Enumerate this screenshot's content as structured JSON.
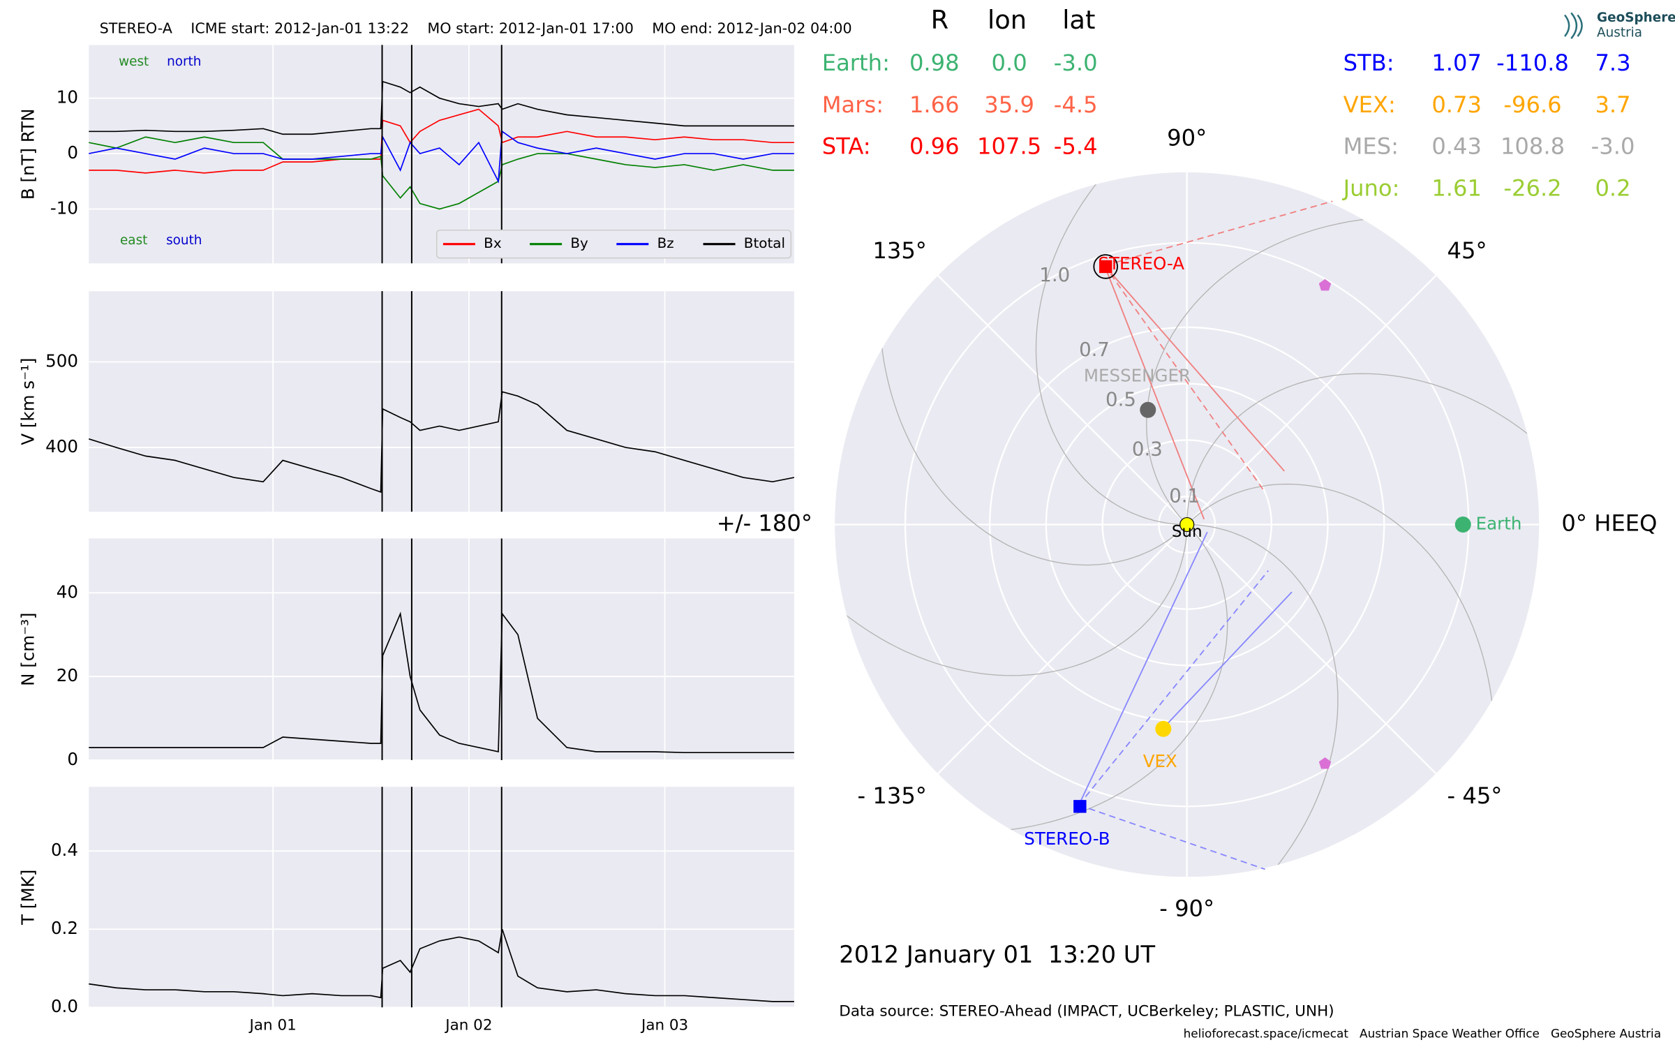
{
  "chart_data": [
    {
      "type": "line",
      "title": "STEREO-A    ICME start: 2012-Jan-01 13:22    MO start: 2012-Jan-01 17:00    MO end: 2012-Jan-02 04:00",
      "y_label": "B [nT] RTN",
      "x": [
        0.06,
        0.2,
        0.35,
        0.5,
        0.65,
        0.8,
        0.95,
        1.05,
        1.2,
        1.35,
        1.5,
        1.55,
        1.56,
        1.65,
        1.7,
        1.75,
        1.85,
        1.95,
        2.05,
        2.15,
        2.17,
        2.25,
        2.35,
        2.5,
        2.65,
        2.8,
        2.95,
        3.1,
        3.25,
        3.4,
        3.55,
        3.66
      ],
      "xlim": [
        0.06,
        3.66
      ],
      "ylim": [
        -19.8,
        19.6
      ],
      "yticks": [
        -10,
        0,
        10
      ],
      "event_lines": [
        1.557,
        1.708,
        2.167
      ],
      "annotations": [
        {
          "text": "west",
          "color": "#228b22"
        },
        {
          "text": "north",
          "color": "#0000cc"
        },
        {
          "text": "east",
          "color": "#228b22"
        },
        {
          "text": "south",
          "color": "#0000cc"
        }
      ],
      "series": [
        {
          "name": "Bx",
          "color": "#ff0000",
          "values": [
            -3,
            -3,
            -3.5,
            -3,
            -3.5,
            -3,
            -3,
            -1.5,
            -1.5,
            -1,
            -1,
            -1,
            6,
            5,
            2,
            4,
            6,
            7,
            8,
            5,
            2,
            3,
            3,
            4,
            3,
            3,
            2.5,
            3,
            2.5,
            2.5,
            2,
            2
          ]
        },
        {
          "name": "By",
          "color": "#008000",
          "values": [
            2,
            1,
            3,
            2,
            3,
            2,
            2,
            -1,
            -1,
            -1,
            -1,
            -0.5,
            -4,
            -8,
            -6,
            -9,
            -10,
            -9,
            -7,
            -5,
            -2,
            -1,
            0,
            0,
            -1,
            -2,
            -2.5,
            -2,
            -3,
            -2,
            -3,
            -3
          ]
        },
        {
          "name": "Bz",
          "color": "#0000ff",
          "values": [
            0,
            1,
            0,
            -1,
            1,
            0,
            0,
            -1,
            -1,
            -0.5,
            0,
            0,
            3,
            -3,
            2,
            0,
            1,
            -2,
            2,
            -5,
            4,
            2,
            1,
            0,
            1,
            0,
            -1,
            0,
            0,
            -1,
            0,
            0
          ]
        },
        {
          "name": "Btotal",
          "color": "#000000",
          "values": [
            4,
            4,
            4.2,
            4,
            4,
            4.2,
            4.5,
            3.5,
            3.5,
            4,
            4.5,
            4.5,
            13,
            12,
            11,
            12,
            10,
            9,
            8.5,
            9,
            8,
            9,
            8,
            7,
            6.5,
            6,
            5.5,
            5,
            5,
            5,
            5,
            5
          ]
        }
      ]
    },
    {
      "type": "line",
      "y_label": "V [km s⁻¹]",
      "x": [
        0.06,
        0.2,
        0.35,
        0.5,
        0.65,
        0.8,
        0.95,
        1.05,
        1.2,
        1.35,
        1.5,
        1.55,
        1.56,
        1.65,
        1.7,
        1.75,
        1.85,
        1.95,
        2.05,
        2.15,
        2.17,
        2.25,
        2.35,
        2.5,
        2.65,
        2.8,
        2.95,
        3.1,
        3.25,
        3.4,
        3.55,
        3.66
      ],
      "xlim": [
        0.06,
        3.66
      ],
      "ylim": [
        325,
        582.5
      ],
      "yticks": [
        400,
        500
      ],
      "color": "#000000",
      "values": [
        410,
        400,
        390,
        385,
        375,
        365,
        360,
        385,
        375,
        365,
        352,
        348,
        445,
        435,
        430,
        420,
        425,
        420,
        425,
        430,
        465,
        460,
        450,
        420,
        410,
        400,
        395,
        385,
        375,
        365,
        360,
        365
      ]
    },
    {
      "type": "line",
      "y_label": "N [cm⁻³]",
      "x": [
        0.06,
        0.2,
        0.35,
        0.5,
        0.65,
        0.8,
        0.95,
        1.05,
        1.2,
        1.35,
        1.5,
        1.55,
        1.56,
        1.65,
        1.7,
        1.75,
        1.85,
        1.95,
        2.05,
        2.15,
        2.17,
        2.25,
        2.35,
        2.5,
        2.65,
        2.8,
        2.95,
        3.1,
        3.25,
        3.4,
        3.55,
        3.66
      ],
      "xlim": [
        0.06,
        3.66
      ],
      "ylim": [
        0,
        53
      ],
      "yticks": [
        0,
        20,
        40
      ],
      "color": "#000000",
      "values": [
        3,
        3,
        3,
        3,
        3,
        3,
        3,
        5.5,
        5,
        4.5,
        4,
        4,
        25,
        35,
        20,
        12,
        6,
        4,
        3,
        2,
        35,
        30,
        10,
        3,
        2,
        2,
        2,
        1.8,
        1.8,
        1.8,
        1.8,
        1.8
      ]
    },
    {
      "type": "line",
      "y_label": "T [MK]",
      "x": [
        0.06,
        0.2,
        0.35,
        0.5,
        0.65,
        0.8,
        0.95,
        1.05,
        1.2,
        1.35,
        1.5,
        1.55,
        1.56,
        1.65,
        1.7,
        1.75,
        1.85,
        1.95,
        2.05,
        2.15,
        2.17,
        2.25,
        2.35,
        2.5,
        2.65,
        2.8,
        2.95,
        3.1,
        3.25,
        3.4,
        3.55,
        3.66
      ],
      "xlim": [
        0.06,
        3.66
      ],
      "ylim": [
        0,
        0.564
      ],
      "yticks": [
        {
          "value": 0,
          "label": "0.0"
        },
        0.2,
        0.4
      ],
      "color": "#000000",
      "xticks": [
        {
          "value": 1,
          "label": "Jan 01"
        },
        {
          "value": 2,
          "label": "Jan 02"
        },
        {
          "value": 3,
          "label": "Jan 03"
        }
      ],
      "values": [
        0.06,
        0.05,
        0.045,
        0.045,
        0.04,
        0.04,
        0.035,
        0.03,
        0.035,
        0.03,
        0.03,
        0.025,
        0.1,
        0.12,
        0.09,
        0.15,
        0.17,
        0.18,
        0.17,
        0.14,
        0.2,
        0.08,
        0.05,
        0.04,
        0.045,
        0.035,
        0.03,
        0.03,
        0.025,
        0.02,
        0.015,
        0.015
      ]
    },
    {
      "type": "polar",
      "rlim": [
        0,
        1.25
      ],
      "rticks": [
        0.1,
        0.3,
        0.5,
        0.7,
        {
          "value": 1,
          "label": "1.0"
        }
      ],
      "thetaticks": [
        {
          "value": 0,
          "label": "0° HEEQ"
        },
        {
          "value": 45,
          "label": "45°"
        },
        {
          "value": 90,
          "label": "90°"
        },
        {
          "value": 135,
          "label": "135°"
        },
        {
          "value": 180,
          "label": "+/- 180°"
        },
        {
          "value": -135,
          "label": "- 135°"
        },
        {
          "value": -90,
          "label": "- 90°"
        },
        {
          "value": -45,
          "label": "- 45°"
        }
      ],
      "objects": [
        {
          "label": "Sun",
          "r": 0,
          "marker": "circle",
          "color": "#ffff00",
          "label_color": "#000000"
        },
        {
          "label": "Earth",
          "r": 0.98,
          "lon": 0,
          "marker": "circle",
          "color": "#3cb371",
          "label_color": "#3cb371"
        },
        {
          "label": "STEREO-A",
          "r": 0.96,
          "lon": 107.5,
          "marker": "square",
          "color": "#ff0000",
          "label_color": "#ff0000"
        },
        {
          "label": "MESSENGER",
          "r": 0.43,
          "lon": 108.8,
          "marker": "circle",
          "color": "#666666",
          "label_color": "#aaaaaa"
        },
        {
          "label": "VEX",
          "r": 0.73,
          "lon": -96.6,
          "marker": "circle",
          "color": "#ffd700",
          "label_color": "#ffa500"
        },
        {
          "label": "STEREO-B",
          "r": 1.07,
          "lon": -110.8,
          "marker": "square",
          "color": "#0000ff",
          "label_color": "#0000ff"
        },
        {
          "label": null,
          "r": 0.98,
          "lon": 60,
          "marker": "pentagon",
          "color": "#da70d6"
        },
        {
          "label": null,
          "r": 0.98,
          "lon": -60,
          "marker": "pentagon",
          "color": "#da70d6"
        }
      ]
    }
  ],
  "positions": {
    "header": [
      "R",
      "lon",
      "lat"
    ],
    "left": [
      {
        "name": "Earth:",
        "color": "#3cb371",
        "values": [
          "0.98",
          "0.0",
          "-3.0"
        ]
      },
      {
        "name": "Mars:",
        "color": "#ff6347",
        "values": [
          "1.66",
          "35.9",
          "-4.5"
        ]
      },
      {
        "name": "STA:",
        "color": "#ff0000",
        "values": [
          "0.96",
          "107.5",
          "-5.4"
        ]
      }
    ],
    "right": [
      {
        "name": "STB:",
        "color": "#0000ff",
        "values": [
          "1.07",
          "-110.8",
          "7.3"
        ]
      },
      {
        "name": "VEX:",
        "color": "#ffa500",
        "values": [
          "0.73",
          "-96.6",
          "3.7"
        ]
      },
      {
        "name": "MES:",
        "color": "#a9a9a9",
        "values": [
          "0.43",
          "108.8",
          "-3.0"
        ]
      },
      {
        "name": "Juno:",
        "color": "#9acd32",
        "values": [
          "1.61",
          "-26.2",
          "0.2"
        ]
      }
    ]
  },
  "timestamp": "2012 January 01  13:20 UT",
  "data_source": "Data source: STEREO-Ahead (IMPACT, UCBerkeley; PLASTIC, UNH)",
  "footer": "helioforecast.space/icmecat   Austrian Space Weather Office   GeoSphere Austria",
  "logo": {
    "line1": "GeoSphere",
    "line2": "Austria"
  }
}
